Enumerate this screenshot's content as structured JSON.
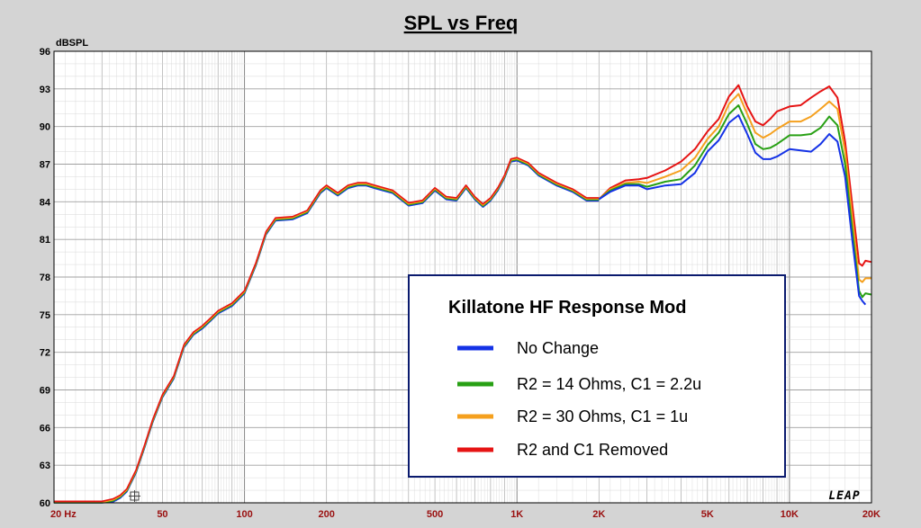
{
  "chart_data": {
    "type": "line",
    "title": "SPL vs Freq",
    "ylabel": "dBSPL",
    "xlabel": "",
    "x_scale": "log",
    "xlim": [
      20,
      20000
    ],
    "ylim": [
      60,
      96
    ],
    "y_ticks": [
      96,
      93,
      90,
      87,
      84,
      81,
      78,
      75,
      72,
      69,
      66,
      63,
      60
    ],
    "x_tick_values": [
      20,
      50,
      100,
      200,
      500,
      1000,
      2000,
      5000,
      10000,
      20000
    ],
    "x_tick_labels": [
      "20  Hz",
      "50",
      "100",
      "200",
      "500",
      "1K",
      "2K",
      "5K",
      "10K",
      "20K"
    ],
    "grid": true,
    "logo": "LEAP",
    "legend": {
      "title": "Killatone HF Response Mod",
      "placement": "bottom-right"
    },
    "base_response": {
      "x": [
        20,
        25,
        30,
        33,
        35,
        37,
        40,
        43,
        46,
        50,
        55,
        60,
        65,
        70,
        75,
        80,
        90,
        100,
        110,
        120,
        130,
        150,
        170,
        190,
        200,
        220,
        240,
        260,
        280,
        300,
        350,
        400,
        450,
        500,
        550,
        600,
        650,
        700,
        750,
        800,
        850,
        900,
        950,
        1000,
        1100,
        1200,
        1400,
        1600,
        1800,
        2000
      ],
      "y": [
        60,
        60,
        60,
        60.2,
        60.5,
        61,
        62.5,
        64.5,
        66.5,
        68.5,
        70,
        72.5,
        73.5,
        74,
        74.6,
        75.2,
        75.8,
        76.8,
        79,
        81.5,
        82.6,
        82.7,
        83.2,
        84.8,
        85.2,
        84.6,
        85.2,
        85.4,
        85.4,
        85.2,
        84.8,
        83.8,
        84,
        85,
        84.3,
        84.2,
        85.2,
        84.3,
        83.7,
        84.2,
        85,
        86,
        87.3,
        87.4,
        87,
        86.2,
        85.4,
        84.9,
        84.2,
        84.2
      ]
    },
    "series": [
      {
        "name": "No Change",
        "color": "#1432e6",
        "x": [
          2000,
          2200,
          2500,
          2800,
          3000,
          3500,
          4000,
          4500,
          5000,
          5500,
          6000,
          6500,
          7000,
          7500,
          8000,
          8500,
          9000,
          10000,
          11000,
          12000,
          13000,
          14000,
          15000,
          16000,
          17000,
          18000,
          18500,
          19000
        ],
        "y": [
          84.2,
          84.8,
          85.3,
          85.3,
          85.0,
          85.3,
          85.4,
          86.3,
          88.0,
          88.9,
          90.3,
          90.9,
          89.4,
          87.9,
          87.4,
          87.4,
          87.6,
          88.2,
          88.1,
          88.0,
          88.6,
          89.4,
          88.8,
          86.0,
          81.0,
          76.5,
          76.1,
          75.8
        ]
      },
      {
        "name": "R2 = 14 Ohms, C1 = 2.2u",
        "color": "#28a014",
        "x": [
          2000,
          2200,
          2500,
          2800,
          3000,
          3500,
          4000,
          4500,
          5000,
          5500,
          6000,
          6500,
          7000,
          7500,
          8000,
          8500,
          9000,
          10000,
          11000,
          12000,
          13000,
          14000,
          15000,
          16000,
          17000,
          18000,
          18500,
          19000,
          20000
        ],
        "y": [
          84.2,
          84.9,
          85.4,
          85.4,
          85.2,
          85.6,
          85.8,
          86.9,
          88.5,
          89.5,
          91.0,
          91.7,
          90.2,
          88.6,
          88.2,
          88.3,
          88.6,
          89.3,
          89.3,
          89.4,
          89.9,
          90.8,
          90.1,
          87.0,
          81.8,
          76.9,
          76.4,
          76.7,
          76.6
        ]
      },
      {
        "name": "R2 = 30 Ohms, C1 = 1u",
        "color": "#f5a01e",
        "x": [
          2000,
          2200,
          2500,
          2800,
          3000,
          3500,
          4000,
          4500,
          5000,
          5500,
          6000,
          6500,
          7000,
          7500,
          8000,
          8500,
          9000,
          10000,
          11000,
          12000,
          13000,
          14000,
          15000,
          16000,
          17000,
          18000,
          18500,
          19000,
          20000
        ],
        "y": [
          84.2,
          85.0,
          85.5,
          85.6,
          85.5,
          86.0,
          86.5,
          87.5,
          89.0,
          90.0,
          91.8,
          92.6,
          91.0,
          89.5,
          89.1,
          89.4,
          89.8,
          90.4,
          90.4,
          90.8,
          91.4,
          92.0,
          91.4,
          88.0,
          82.8,
          77.8,
          77.6,
          77.9,
          77.9
        ]
      },
      {
        "name": "R2 and C1 Removed",
        "color": "#e61414",
        "x": [
          2000,
          2200,
          2500,
          2800,
          3000,
          3500,
          4000,
          4500,
          5000,
          5500,
          6000,
          6500,
          7000,
          7500,
          8000,
          8500,
          9000,
          10000,
          11000,
          12000,
          13000,
          14000,
          15000,
          16000,
          17000,
          18000,
          18500,
          19000,
          20000
        ],
        "y": [
          84.2,
          85.1,
          85.7,
          85.8,
          85.9,
          86.5,
          87.2,
          88.2,
          89.6,
          90.6,
          92.4,
          93.3,
          91.6,
          90.4,
          90.1,
          90.6,
          91.2,
          91.6,
          91.7,
          92.3,
          92.8,
          93.2,
          92.3,
          88.8,
          83.8,
          79.1,
          78.9,
          79.3,
          79.2
        ]
      }
    ]
  }
}
